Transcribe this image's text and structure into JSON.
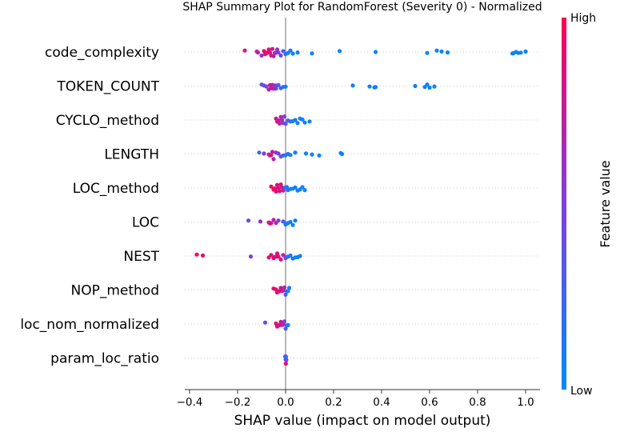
{
  "chart_data": {
    "type": "scatter",
    "subtype": "beeswarm",
    "title": "SHAP Summary Plot for RandomForest (Severity 0) - Normalized",
    "xlabel": "SHAP value (impact on model output)",
    "xlim": [
      -0.42,
      1.06
    ],
    "xticks": [
      -0.4,
      -0.2,
      0.0,
      0.2,
      0.4,
      0.6,
      0.8,
      1.0
    ],
    "xtick_labels": [
      "−0.4",
      "−0.2",
      "0.0",
      "0.2",
      "0.4",
      "0.6",
      "0.8",
      "1.0"
    ],
    "colorbar": {
      "label": "Feature value",
      "high_label": "High",
      "low_label": "Low",
      "low_color": "#008bfb",
      "high_color": "#ff0052"
    },
    "features": [
      {
        "name": "code_complexity",
        "points": [
          [
            -0.17,
            0.8
          ],
          [
            -0.12,
            0.7
          ],
          [
            -0.115,
            0.7
          ],
          [
            -0.1,
            0.6
          ],
          [
            -0.09,
            0.9
          ],
          [
            -0.085,
            0.9
          ],
          [
            -0.08,
            0.9
          ],
          [
            -0.075,
            0.9
          ],
          [
            -0.07,
            0.85
          ],
          [
            -0.065,
            0.85
          ],
          [
            -0.06,
            0.8
          ],
          [
            -0.055,
            0.8
          ],
          [
            -0.05,
            0.75
          ],
          [
            -0.045,
            0.7
          ],
          [
            -0.04,
            0.6
          ],
          [
            -0.035,
            0.6
          ],
          [
            -0.03,
            0.5
          ],
          [
            -0.02,
            0.4
          ],
          [
            -0.01,
            0.3
          ],
          [
            0.0,
            0.2
          ],
          [
            0.01,
            0.1
          ],
          [
            0.02,
            0.1
          ],
          [
            0.03,
            0.05
          ],
          [
            0.05,
            0.05
          ],
          [
            0.11,
            0.05
          ],
          [
            0.225,
            0.05
          ],
          [
            0.375,
            0.05
          ],
          [
            0.59,
            0.05
          ],
          [
            0.63,
            0.05
          ],
          [
            0.65,
            0.05
          ],
          [
            0.675,
            0.05
          ],
          [
            0.945,
            0.05
          ],
          [
            0.95,
            0.05
          ],
          [
            0.96,
            0.05
          ],
          [
            0.97,
            0.05
          ],
          [
            0.98,
            0.05
          ],
          [
            1.0,
            0.05
          ]
        ]
      },
      {
        "name": "TOKEN_COUNT",
        "points": [
          [
            -0.1,
            0.3
          ],
          [
            -0.09,
            0.4
          ],
          [
            -0.08,
            0.5
          ],
          [
            -0.07,
            0.7
          ],
          [
            -0.065,
            0.75
          ],
          [
            -0.06,
            0.8
          ],
          [
            -0.055,
            0.75
          ],
          [
            -0.05,
            0.7
          ],
          [
            -0.045,
            0.6
          ],
          [
            -0.04,
            0.5
          ],
          [
            -0.035,
            0.4
          ],
          [
            -0.03,
            0.3
          ],
          [
            -0.02,
            0.25
          ],
          [
            -0.01,
            0.2
          ],
          [
            0.0,
            0.1
          ],
          [
            0.28,
            0.05
          ],
          [
            0.35,
            0.05
          ],
          [
            0.37,
            0.05
          ],
          [
            0.375,
            0.05
          ],
          [
            0.54,
            0.05
          ],
          [
            0.58,
            0.05
          ],
          [
            0.59,
            0.05
          ],
          [
            0.6,
            0.05
          ],
          [
            0.62,
            0.05
          ]
        ]
      },
      {
        "name": "CYCLO_method",
        "points": [
          [
            -0.04,
            0.8
          ],
          [
            -0.035,
            0.85
          ],
          [
            -0.03,
            0.8
          ],
          [
            -0.025,
            0.75
          ],
          [
            -0.02,
            0.7
          ],
          [
            -0.015,
            0.6
          ],
          [
            -0.01,
            0.55
          ],
          [
            -0.005,
            0.5
          ],
          [
            0.0,
            0.4
          ],
          [
            0.01,
            0.2
          ],
          [
            0.02,
            0.15
          ],
          [
            0.03,
            0.1
          ],
          [
            0.04,
            0.1
          ],
          [
            0.05,
            0.08
          ],
          [
            0.06,
            0.05
          ],
          [
            0.07,
            0.05
          ],
          [
            0.08,
            0.05
          ],
          [
            0.1,
            0.05
          ]
        ]
      },
      {
        "name": "LENGTH",
        "points": [
          [
            -0.11,
            0.2
          ],
          [
            -0.09,
            0.5
          ],
          [
            -0.07,
            0.7
          ],
          [
            -0.065,
            0.75
          ],
          [
            -0.06,
            0.8
          ],
          [
            -0.055,
            0.75
          ],
          [
            -0.05,
            0.65
          ],
          [
            -0.04,
            0.6
          ],
          [
            -0.03,
            0.5
          ],
          [
            -0.02,
            0.4
          ],
          [
            -0.01,
            0.3
          ],
          [
            0.0,
            0.15
          ],
          [
            0.01,
            0.1
          ],
          [
            0.02,
            0.1
          ],
          [
            0.04,
            0.05
          ],
          [
            0.085,
            0.05
          ],
          [
            0.11,
            0.05
          ],
          [
            0.14,
            0.05
          ],
          [
            0.23,
            0.05
          ],
          [
            0.235,
            0.05
          ]
        ]
      },
      {
        "name": "LOC_method",
        "points": [
          [
            -0.06,
            0.95
          ],
          [
            -0.05,
            0.95
          ],
          [
            -0.045,
            0.9
          ],
          [
            -0.04,
            0.9
          ],
          [
            -0.035,
            0.9
          ],
          [
            -0.03,
            0.85
          ],
          [
            -0.025,
            0.85
          ],
          [
            -0.02,
            0.85
          ],
          [
            -0.015,
            0.8
          ],
          [
            -0.01,
            0.7
          ],
          [
            0.0,
            0.2
          ],
          [
            0.005,
            0.15
          ],
          [
            0.01,
            0.15
          ],
          [
            0.02,
            0.1
          ],
          [
            0.03,
            0.1
          ],
          [
            0.04,
            0.08
          ],
          [
            0.05,
            0.05
          ],
          [
            0.06,
            0.05
          ],
          [
            0.07,
            0.05
          ],
          [
            0.08,
            0.05
          ]
        ]
      },
      {
        "name": "LOC",
        "points": [
          [
            -0.155,
            0.4
          ],
          [
            -0.105,
            0.6
          ],
          [
            -0.07,
            0.8
          ],
          [
            -0.065,
            0.85
          ],
          [
            -0.06,
            0.8
          ],
          [
            -0.05,
            0.75
          ],
          [
            -0.04,
            0.6
          ],
          [
            -0.03,
            0.5
          ],
          [
            -0.01,
            0.3
          ],
          [
            0.0,
            0.15
          ],
          [
            0.005,
            0.1
          ],
          [
            0.01,
            0.1
          ],
          [
            0.02,
            0.08
          ],
          [
            0.03,
            0.05
          ],
          [
            0.04,
            0.05
          ]
        ]
      },
      {
        "name": "NEST",
        "points": [
          [
            -0.37,
            0.95
          ],
          [
            -0.345,
            0.95
          ],
          [
            -0.145,
            0.5
          ],
          [
            -0.07,
            0.9
          ],
          [
            -0.06,
            0.9
          ],
          [
            -0.05,
            0.9
          ],
          [
            -0.045,
            0.9
          ],
          [
            -0.04,
            0.85
          ],
          [
            -0.035,
            0.85
          ],
          [
            -0.03,
            0.85
          ],
          [
            -0.02,
            0.8
          ],
          [
            -0.01,
            0.7
          ],
          [
            0.0,
            0.5
          ],
          [
            0.005,
            0.3
          ],
          [
            0.01,
            0.15
          ],
          [
            0.02,
            0.1
          ],
          [
            0.03,
            0.08
          ],
          [
            0.04,
            0.05
          ],
          [
            0.05,
            0.05
          ],
          [
            0.06,
            0.05
          ]
        ]
      },
      {
        "name": "NOP_method",
        "points": [
          [
            -0.05,
            0.9
          ],
          [
            -0.04,
            0.9
          ],
          [
            -0.035,
            0.88
          ],
          [
            -0.03,
            0.88
          ],
          [
            -0.025,
            0.85
          ],
          [
            -0.02,
            0.85
          ],
          [
            -0.015,
            0.8
          ],
          [
            -0.01,
            0.7
          ],
          [
            -0.005,
            0.6
          ],
          [
            0.0,
            0.3
          ],
          [
            0.005,
            0.15
          ],
          [
            0.01,
            0.1
          ],
          [
            0.015,
            0.08
          ]
        ]
      },
      {
        "name": "loc_nom_normalized",
        "points": [
          [
            -0.085,
            0.45
          ],
          [
            -0.04,
            0.9
          ],
          [
            -0.035,
            0.88
          ],
          [
            -0.03,
            0.85
          ],
          [
            -0.025,
            0.85
          ],
          [
            -0.02,
            0.8
          ],
          [
            -0.015,
            0.75
          ],
          [
            -0.01,
            0.7
          ],
          [
            -0.005,
            0.5
          ],
          [
            0.0,
            0.3
          ],
          [
            0.005,
            0.15
          ],
          [
            0.01,
            0.1
          ]
        ]
      },
      {
        "name": "param_loc_ratio",
        "points": [
          [
            -0.002,
            0.2
          ],
          [
            0.0,
            0.15
          ],
          [
            0.0,
            0.6
          ],
          [
            0.001,
            0.9
          ],
          [
            0.002,
            0.1
          ],
          [
            0.003,
            0.5
          ]
        ]
      }
    ]
  }
}
